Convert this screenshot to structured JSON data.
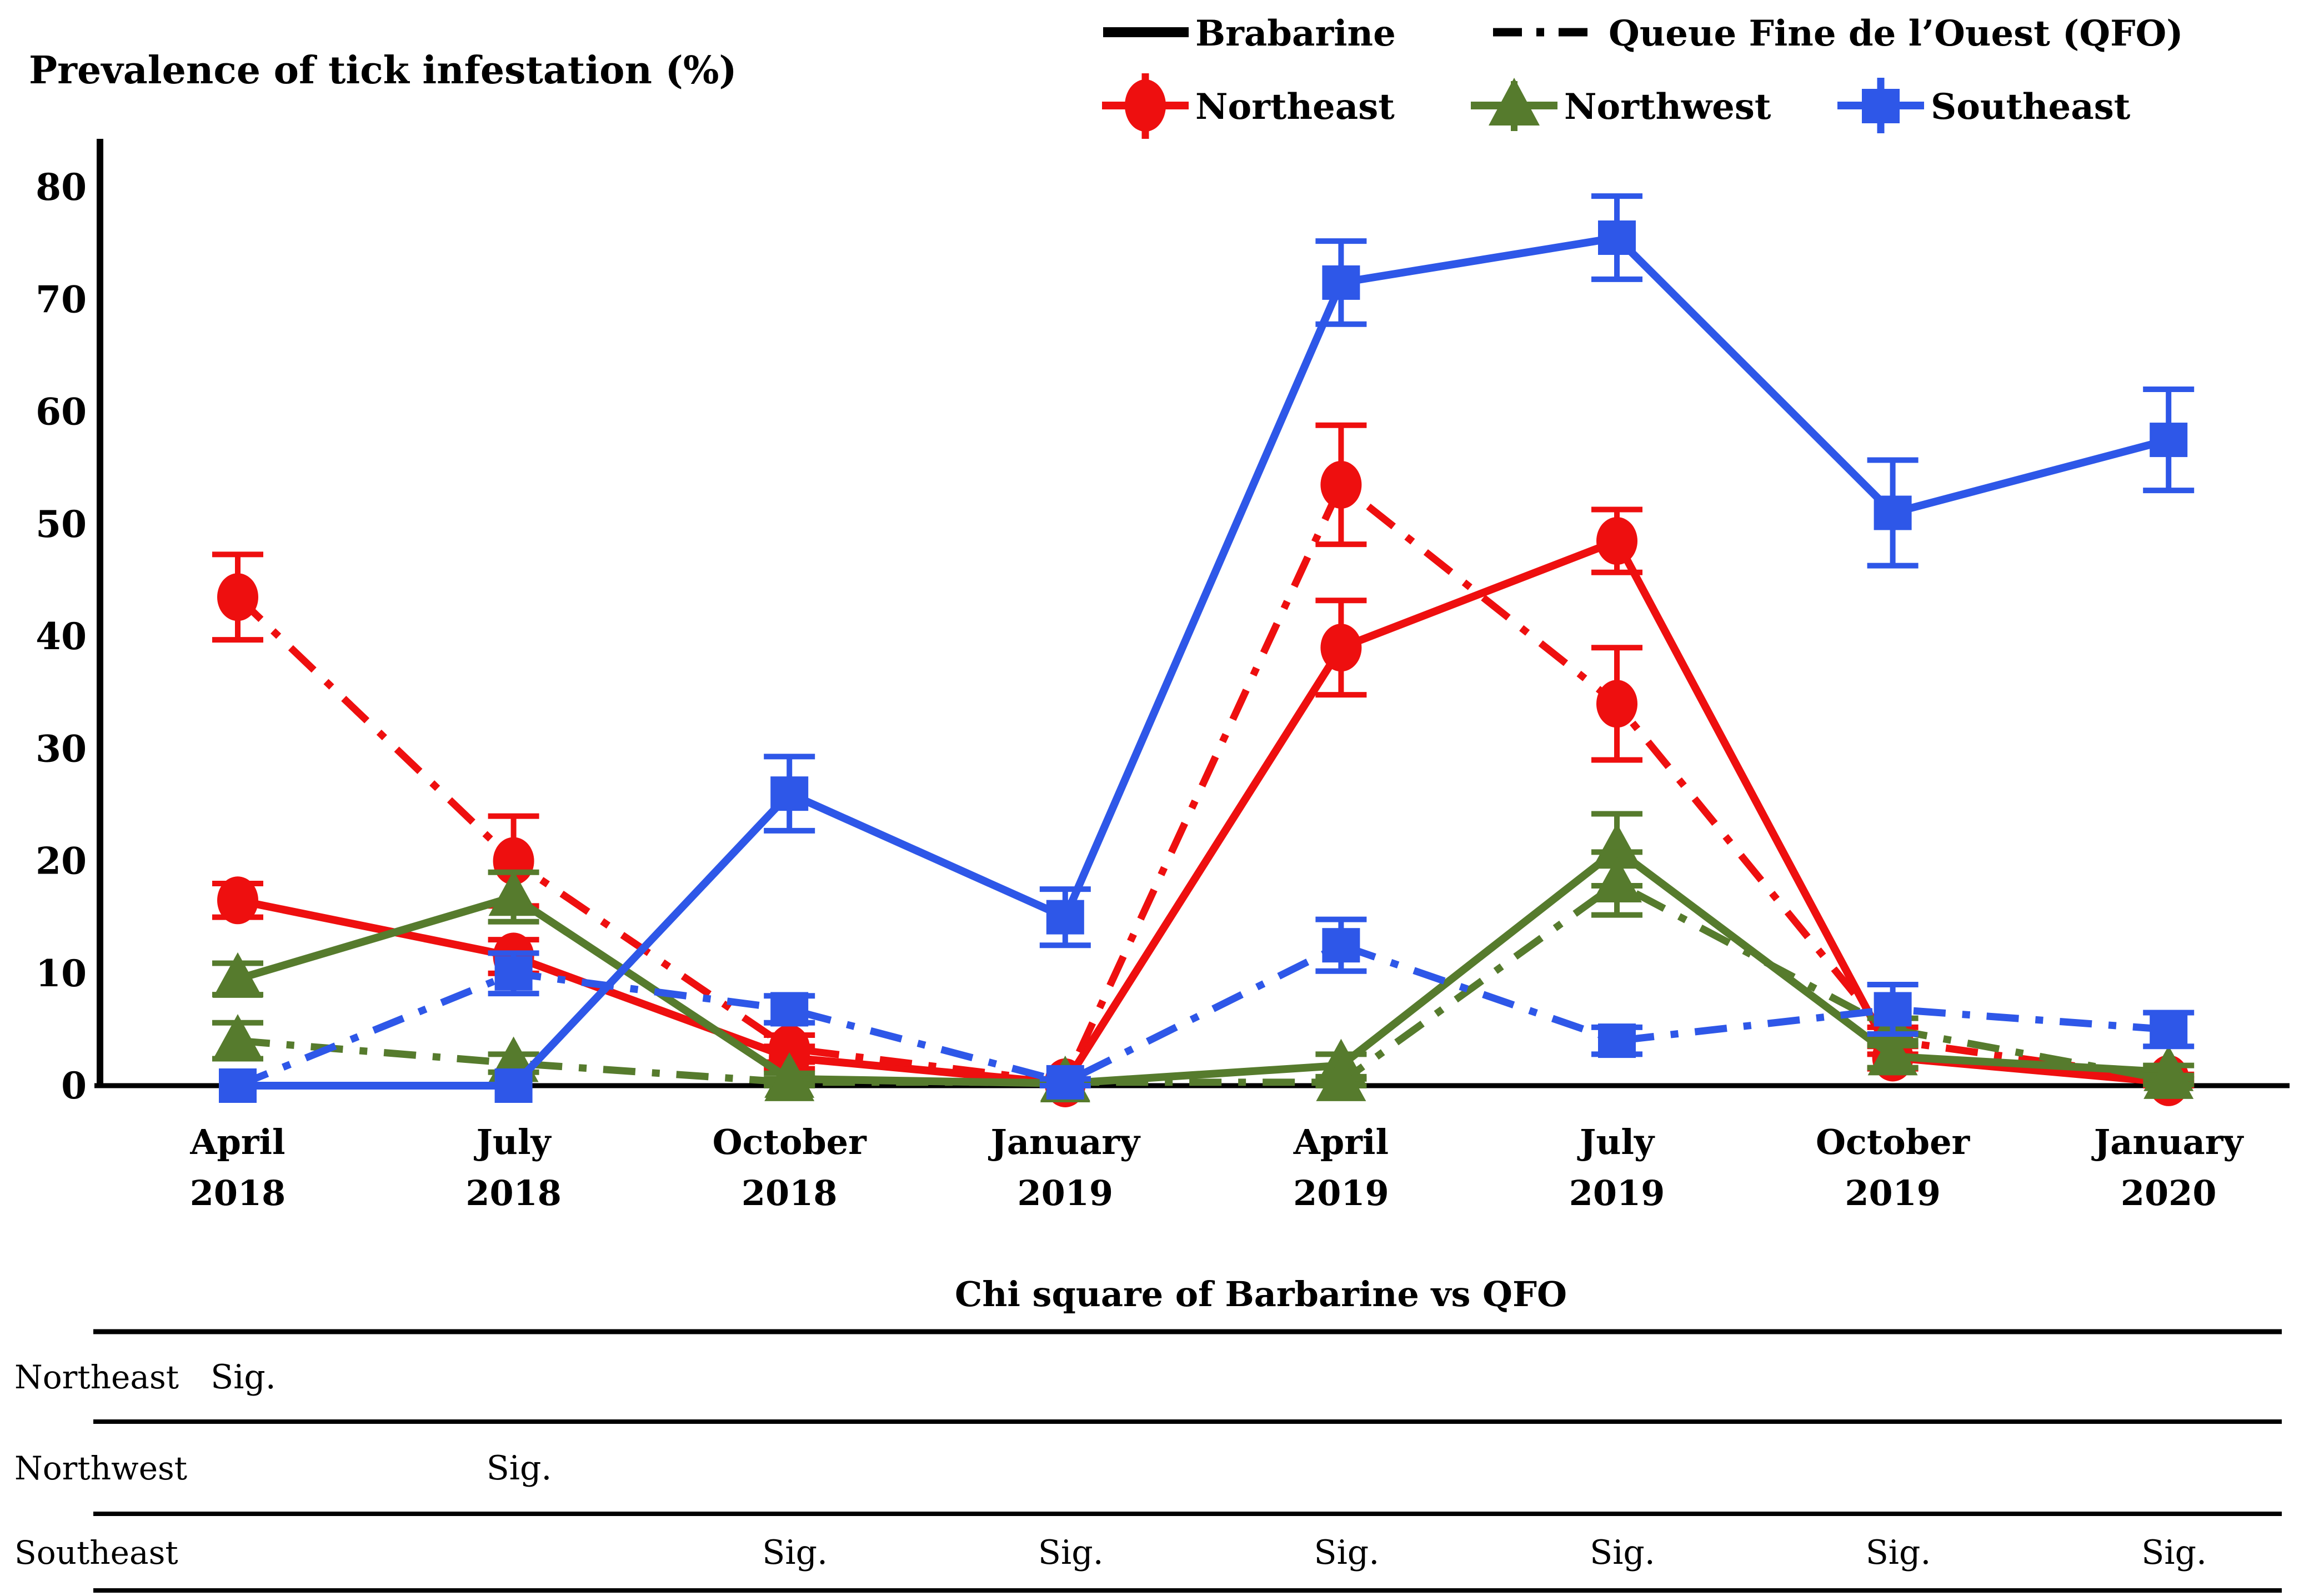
{
  "chart_data": {
    "type": "line",
    "title": "",
    "ylabel": "Prevalence of tick infestation (%)",
    "xlabel": "",
    "ylim": [
      0,
      80
    ],
    "yticks": [
      0,
      10,
      20,
      30,
      40,
      50,
      60,
      70,
      80
    ],
    "grid": false,
    "legend_position": "top-right",
    "categories": [
      {
        "month": "April",
        "year": "2018"
      },
      {
        "month": "July",
        "year": "2018"
      },
      {
        "month": "October",
        "year": "2018"
      },
      {
        "month": "January",
        "year": "2019"
      },
      {
        "month": "April",
        "year": "2019"
      },
      {
        "month": "July",
        "year": "2019"
      },
      {
        "month": "October",
        "year": "2019"
      },
      {
        "month": "January",
        "year": "2020"
      }
    ],
    "colors": {
      "northeast": "#ee0f0f",
      "northwest": "#567b2d",
      "southeast": "#2e57e8",
      "line_black": "#000000"
    },
    "legend": {
      "breed_entries": [
        {
          "label": "Brabarine",
          "style": "solid"
        },
        {
          "label": "Queue Fine de l’Ouest (QFO)",
          "style": "dashdot"
        }
      ],
      "region_entries": [
        {
          "label": "Northeast",
          "marker": "circle",
          "color": "#ee0f0f"
        },
        {
          "label": "Northwest",
          "marker": "triangle",
          "color": "#567b2d"
        },
        {
          "label": "Southeast",
          "marker": "square",
          "color": "#2e57e8"
        }
      ]
    },
    "series": [
      {
        "name": "Northeast Brabarine",
        "region": "northeast",
        "breed": "Brabarine",
        "marker": "circle",
        "line": "solid",
        "color": "#ee0f0f",
        "values": [
          16.5,
          11.5,
          2.5,
          0.2,
          39,
          48.5,
          2.5,
          0.3
        ],
        "errors": [
          1.5,
          1.5,
          1.0,
          0.2,
          4.2,
          2.8,
          1.0,
          0.3
        ]
      },
      {
        "name": "Northeast QFO",
        "region": "northeast",
        "breed": "QFO",
        "marker": "circle",
        "line": "dashdot",
        "color": "#ee0f0f",
        "values": [
          43.5,
          20,
          3.3,
          0.3,
          53.5,
          34,
          4,
          0.6
        ],
        "errors": [
          3.8,
          4.0,
          1.2,
          0.3,
          5.3,
          5.0,
          1.2,
          0.4
        ]
      },
      {
        "name": "Northwest Brabarine",
        "region": "northwest",
        "breed": "Brabarine",
        "marker": "triangle",
        "line": "solid",
        "color": "#567b2d",
        "values": [
          9.5,
          16.8,
          0.6,
          0.2,
          1.8,
          21,
          2.6,
          1.2
        ],
        "errors": [
          1.4,
          2.2,
          0.5,
          0.2,
          1.0,
          3.2,
          1.0,
          0.6
        ]
      },
      {
        "name": "Northwest QFO",
        "region": "northwest",
        "breed": "QFO",
        "marker": "triangle",
        "line": "dashdot",
        "color": "#567b2d",
        "values": [
          4,
          2,
          0.3,
          0.3,
          0.3,
          18,
          5,
          0.5
        ],
        "errors": [
          1.6,
          0.8,
          0.3,
          0.3,
          0.3,
          2.8,
          1.0,
          0.4
        ]
      },
      {
        "name": "Southeast Brabarine",
        "region": "southeast",
        "breed": "Brabarine",
        "marker": "square",
        "line": "solid",
        "color": "#2e57e8",
        "values": [
          0,
          0,
          26,
          15,
          71.5,
          75.5,
          51,
          57.5
        ],
        "errors": [
          0,
          0,
          3.3,
          2.5,
          3.7,
          3.7,
          4.7,
          4.5
        ]
      },
      {
        "name": "Southeast QFO",
        "region": "southeast",
        "breed": "QFO",
        "marker": "square",
        "line": "dashdot",
        "color": "#2e57e8",
        "values": [
          0,
          10,
          6.8,
          0.3,
          12.5,
          4,
          6.8,
          5
        ],
        "errors": [
          0,
          1.8,
          1.2,
          0.3,
          2.3,
          1.2,
          2.2,
          1.5
        ]
      }
    ],
    "table": {
      "title": "Chi square of Barbarine vs QFO",
      "sig_label": "Sig.",
      "rows": [
        {
          "label": "Northeast",
          "sig_columns": [
            0
          ]
        },
        {
          "label": "Northwest",
          "sig_columns": [
            1
          ]
        },
        {
          "label": "Southeast",
          "sig_columns": [
            2,
            3,
            4,
            5,
            6,
            7
          ]
        }
      ]
    }
  }
}
